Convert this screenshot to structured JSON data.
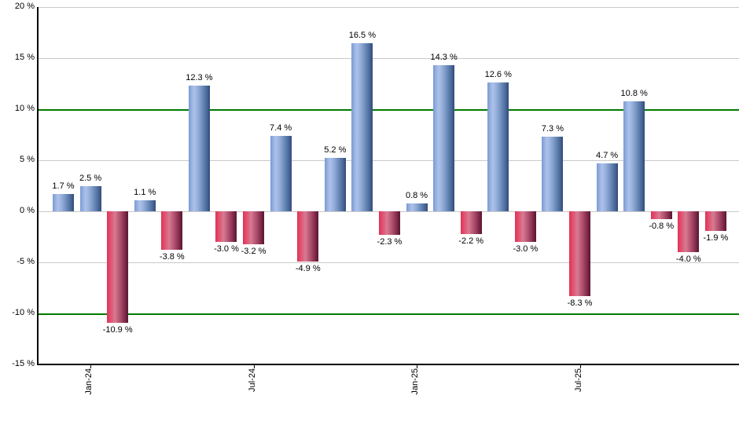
{
  "chart_data": {
    "type": "bar",
    "title": "",
    "xlabel": "",
    "ylabel": "",
    "ylim": [
      -15,
      20
    ],
    "grid": true,
    "legend": "none",
    "values": [
      1.7,
      2.5,
      -10.9,
      1.1,
      -3.8,
      12.3,
      -3.0,
      -3.2,
      7.4,
      -4.9,
      5.2,
      16.5,
      -2.3,
      0.8,
      14.3,
      -2.2,
      12.6,
      -3.0,
      7.3,
      -8.3,
      4.7,
      10.8,
      -0.8,
      -4.0,
      -1.9
    ],
    "bar_value_labels": [
      "1.7 %",
      "2.5 %",
      "-10.9 %",
      "1.1 %",
      "-3.8 %",
      "12.3 %",
      "-3.0 %",
      "-3.2 %",
      "7.4 %",
      "-4.9 %",
      "5.2 %",
      "16.5 %",
      "-2.3 %",
      "0.8 %",
      "14.3 %",
      "-2.2 %",
      "12.6 %",
      "-3.0 %",
      "7.3 %",
      "-8.3 %",
      "4.7 %",
      "10.8 %",
      "-0.8 %",
      "-4.0 %",
      "-1.9 %"
    ],
    "y_ticks": [
      20,
      15,
      10,
      5,
      0,
      -5,
      -10,
      -15
    ],
    "y_tick_labels": [
      "20 %",
      "15 %",
      "10 %",
      "5 %",
      "0 %",
      "-5 %",
      "-10 %",
      "-15 %"
    ],
    "x_ticks": [
      {
        "bar_index": 1,
        "label": "Jan-24"
      },
      {
        "bar_index": 7,
        "label": "Jul-24"
      },
      {
        "bar_index": 13,
        "label": "Jan-25"
      },
      {
        "bar_index": 19,
        "label": "Jul-25"
      }
    ],
    "green_highlight_lines": [
      10,
      -10
    ],
    "colors": {
      "background": "#ffffff",
      "text": "#000000",
      "gridline": "#c9c9c9",
      "green_line": "#007a00",
      "axis": "#000000",
      "bar_positive_gradient": [
        [
          0,
          "#7a9ad6"
        ],
        [
          12,
          "#93aede"
        ],
        [
          25,
          "#adc2ea"
        ],
        [
          40,
          "#9bb2de"
        ],
        [
          55,
          "#7f9dca"
        ],
        [
          72,
          "#6081b0"
        ],
        [
          87,
          "#476795"
        ],
        [
          100,
          "#33497a"
        ]
      ],
      "bar_negative_gradient": [
        [
          0,
          "#dd3456"
        ],
        [
          14,
          "#e24b6b"
        ],
        [
          38,
          "#d67b92"
        ],
        [
          55,
          "#bd5c79"
        ],
        [
          74,
          "#993c5c"
        ],
        [
          88,
          "#782544"
        ],
        [
          100,
          "#591631"
        ]
      ]
    }
  }
}
